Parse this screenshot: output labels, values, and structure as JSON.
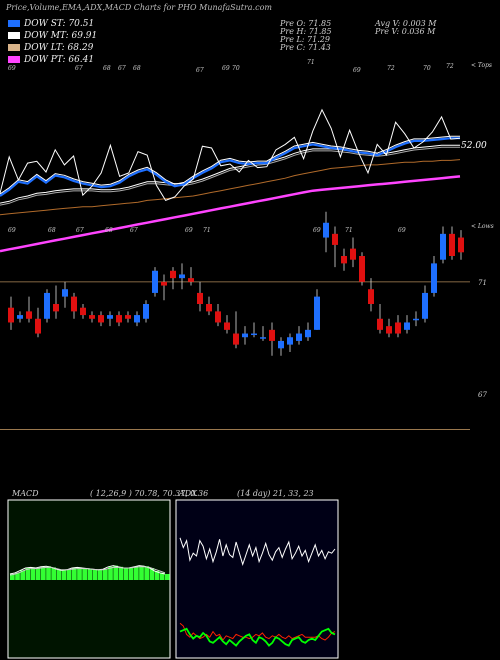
{
  "header": {
    "title": "Price,Volume,EMA,ADX,MACD Charts for PHO MunafaSutra.com",
    "open_label": "Pre O: 71.85",
    "high_label": "Pre H: 71.85",
    "low_label": "Pre L: 71.29",
    "close_label": "Pre C: 71.43",
    "avg_vol_label": "Avg V: 0.003 M",
    "pre_vol_label": "Pre V: 0.036 M"
  },
  "legend": [
    {
      "label": "DOW ST: 70.51",
      "color": "#1e6fff"
    },
    {
      "label": "DOW MT: 69.91",
      "color": "#ffffff"
    },
    {
      "label": "DOW LT: 68.29",
      "color": "#d9b48a"
    },
    {
      "label": "DOW PT: 66.41",
      "color": "#ff44ff"
    }
  ],
  "top_panel": {
    "right_label": "< Tops",
    "price_label": "52.00",
    "top_marks": [
      "69",
      "67",
      "68",
      "67",
      "68",
      "67",
      "69",
      "70",
      "71",
      "69",
      "72",
      "70",
      "72"
    ]
  },
  "candle_panel": {
    "right_label": "< Lows",
    "low_marks": [
      "69",
      "68",
      "67",
      "68",
      "67",
      "69",
      "71",
      "69",
      "71",
      "69"
    ],
    "level_labels": [
      "71",
      "67"
    ]
  },
  "macd": {
    "label": "MACD",
    "params": "( 12,26,9 ) 70.78, 70.37, 0.36"
  },
  "adx": {
    "label": "ADX",
    "params": "(14 day) 21, 33, 23"
  },
  "colors": {
    "up": "#1e6fff",
    "down": "#e01010",
    "macd_hist": "#33ff33",
    "adx_plus": "#00ff00",
    "adx_minus": "#ff2200"
  },
  "chart_data": [
    {
      "type": "candlestick",
      "title": "",
      "ylim": [
        66.5,
        73
      ],
      "series": [
        {
          "name": "candles",
          "ohlc": [
            [
              70.3,
              70.6,
              69.7,
              69.9
            ],
            [
              70.0,
              70.2,
              69.9,
              70.1
            ],
            [
              70.2,
              70.6,
              69.9,
              70.0
            ],
            [
              70.0,
              70.3,
              69.5,
              69.6
            ],
            [
              70.0,
              70.8,
              69.9,
              70.7
            ],
            [
              70.4,
              70.9,
              70.0,
              70.2
            ],
            [
              70.6,
              71.0,
              70.3,
              70.8
            ],
            [
              70.6,
              70.7,
              70.0,
              70.2
            ],
            [
              70.3,
              70.4,
              70.0,
              70.1
            ],
            [
              70.1,
              70.2,
              69.9,
              70.0
            ],
            [
              70.1,
              70.2,
              69.8,
              69.9
            ],
            [
              70.0,
              70.2,
              69.8,
              70.1
            ],
            [
              70.1,
              70.2,
              69.8,
              69.9
            ],
            [
              70.1,
              70.2,
              69.9,
              70.0
            ],
            [
              69.9,
              70.2,
              69.8,
              70.1
            ],
            [
              70.0,
              70.5,
              69.9,
              70.4
            ],
            [
              70.7,
              71.4,
              70.6,
              71.3
            ],
            [
              71.0,
              71.2,
              70.5,
              70.9
            ],
            [
              71.3,
              71.4,
              70.8,
              71.1
            ],
            [
              71.1,
              71.5,
              70.8,
              71.2
            ],
            [
              71.1,
              71.4,
              70.9,
              71.0
            ],
            [
              70.7,
              71.0,
              70.2,
              70.4
            ],
            [
              70.4,
              70.6,
              70.1,
              70.2
            ],
            [
              70.2,
              70.4,
              69.8,
              69.9
            ],
            [
              69.9,
              70.1,
              69.6,
              69.7
            ],
            [
              69.6,
              70.2,
              69.2,
              69.3
            ],
            [
              69.5,
              69.8,
              69.3,
              69.6
            ],
            [
              69.6,
              69.9,
              69.5,
              69.6
            ],
            [
              69.5,
              69.8,
              69.4,
              69.5
            ],
            [
              69.7,
              69.9,
              69.0,
              69.4
            ],
            [
              69.2,
              69.5,
              69.0,
              69.4
            ],
            [
              69.3,
              69.6,
              69.1,
              69.5
            ],
            [
              69.4,
              69.8,
              69.3,
              69.6
            ],
            [
              69.5,
              69.9,
              69.4,
              69.7
            ],
            [
              69.7,
              70.8,
              69.7,
              70.6
            ],
            [
              72.2,
              72.9,
              71.8,
              72.6
            ],
            [
              72.3,
              72.5,
              71.4,
              72.0
            ],
            [
              71.7,
              71.9,
              71.3,
              71.5
            ],
            [
              71.9,
              72.2,
              71.4,
              71.6
            ],
            [
              71.7,
              71.8,
              70.9,
              71.0
            ],
            [
              70.8,
              71.1,
              70.2,
              70.4
            ],
            [
              70.0,
              70.4,
              69.6,
              69.7
            ],
            [
              69.8,
              70.0,
              69.5,
              69.6
            ],
            [
              69.9,
              70.1,
              69.5,
              69.6
            ],
            [
              69.7,
              70.1,
              69.6,
              69.9
            ],
            [
              70.0,
              70.2,
              69.8,
              70.0
            ],
            [
              70.0,
              70.9,
              69.9,
              70.7
            ],
            [
              70.7,
              71.7,
              70.6,
              71.5
            ],
            [
              71.6,
              72.5,
              71.5,
              72.3
            ],
            [
              72.3,
              72.5,
              71.6,
              71.7
            ],
            [
              72.2,
              72.4,
              71.6,
              71.8
            ]
          ]
        }
      ]
    },
    {
      "type": "line",
      "title": "",
      "series": [
        {
          "name": "DOW ST",
          "values": [
            64.2,
            64.9,
            65.8,
            65.6,
            66.4,
            65.7,
            66.5,
            66.3,
            65.9,
            65.6,
            65.4,
            65.2,
            65.3,
            65.7,
            66.4,
            66.9,
            67.2,
            66.6,
            65.8,
            65.3,
            65.5,
            66.2,
            66.8,
            67.3,
            68.0,
            68.2,
            67.9,
            67.8,
            67.9,
            67.9,
            68.5,
            69.0,
            69.6,
            69.8,
            70.0,
            69.8,
            69.6,
            69.5,
            69.3,
            69.1,
            69.0,
            68.8,
            69.2,
            69.7,
            70.1,
            70.4,
            70.4,
            70.5,
            70.6,
            70.7,
            70.7
          ]
        },
        {
          "name": "DOW MT",
          "values": [
            63.4,
            63.6,
            64.0,
            64.2,
            64.5,
            64.6,
            64.8,
            64.9,
            65.0,
            65.0,
            65.0,
            64.9,
            64.9,
            65.0,
            65.2,
            65.5,
            65.8,
            65.8,
            65.7,
            65.6,
            65.6,
            65.8,
            66.1,
            66.5,
            66.9,
            67.3,
            67.5,
            67.7,
            67.9,
            68.0,
            68.3,
            68.6,
            69.0,
            69.3,
            69.5,
            69.5,
            69.5,
            69.4,
            69.3,
            69.1,
            69.0,
            68.9,
            69.0,
            69.2,
            69.4,
            69.6,
            69.7,
            69.8,
            69.9,
            69.9,
            69.9
          ]
        },
        {
          "name": "DOW LT",
          "values": [
            62.1,
            62.2,
            62.3,
            62.4,
            62.5,
            62.6,
            62.7,
            62.8,
            62.9,
            63.0,
            63.0,
            63.1,
            63.2,
            63.3,
            63.4,
            63.5,
            63.7,
            63.8,
            63.9,
            64.0,
            64.1,
            64.2,
            64.4,
            64.6,
            64.8,
            65.0,
            65.2,
            65.4,
            65.6,
            65.8,
            66.0,
            66.2,
            66.5,
            66.7,
            66.9,
            67.1,
            67.3,
            67.4,
            67.5,
            67.6,
            67.7,
            67.7,
            67.8,
            67.9,
            68.0,
            68.0,
            68.1,
            68.1,
            68.2,
            68.2,
            68.3
          ]
        },
        {
          "name": "DOW PT",
          "values": [
            58.0,
            58.2,
            58.4,
            58.6,
            58.8,
            59.0,
            59.2,
            59.4,
            59.6,
            59.8,
            60.0,
            60.2,
            60.4,
            60.6,
            60.8,
            61.0,
            61.2,
            61.4,
            61.6,
            61.8,
            62.0,
            62.2,
            62.4,
            62.6,
            62.8,
            63.0,
            63.2,
            63.4,
            63.6,
            63.8,
            64.0,
            64.2,
            64.4,
            64.6,
            64.8,
            64.9,
            65.0,
            65.1,
            65.2,
            65.3,
            65.4,
            65.5,
            65.6,
            65.7,
            65.8,
            65.9,
            66.0,
            66.1,
            66.2,
            66.3,
            66.4
          ]
        },
        {
          "name": "Close",
          "values": [
            64.5,
            68.6,
            66.0,
            67.9,
            68.1,
            66.9,
            69.4,
            67.7,
            68.7,
            64.3,
            65.3,
            66.8,
            69.9,
            66.4,
            66.8,
            69.2,
            68.8,
            65.4,
            63.7,
            64.1,
            65.3,
            66.1,
            69.8,
            69.6,
            67.6,
            67.8,
            66.9,
            68.2,
            67.4,
            67.5,
            69.4,
            70.0,
            70.8,
            68.4,
            71.5,
            73.9,
            71.8,
            68.6,
            71.6,
            69.0,
            66.8,
            70.0,
            68.8,
            72.5,
            71.2,
            69.6,
            70.3,
            71.4,
            73.1,
            70.6,
            70.7
          ]
        }
      ]
    },
    {
      "type": "area",
      "title": "",
      "series": [
        {
          "name": "MACD",
          "values": [
            0.1,
            0.12,
            0.16,
            0.2,
            0.21,
            0.2,
            0.22,
            0.23,
            0.21,
            0.18,
            0.16,
            0.17,
            0.2,
            0.21,
            0.2,
            0.19,
            0.18,
            0.17,
            0.18,
            0.22,
            0.24,
            0.22,
            0.2,
            0.2,
            0.22,
            0.24,
            0.23,
            0.2,
            0.15,
            0.12,
            0.1
          ]
        },
        {
          "name": "Signal",
          "values": [
            0.08,
            0.1,
            0.13,
            0.17,
            0.19,
            0.19,
            0.2,
            0.21,
            0.21,
            0.19,
            0.17,
            0.17,
            0.18,
            0.19,
            0.19,
            0.19,
            0.18,
            0.17,
            0.17,
            0.19,
            0.21,
            0.21,
            0.2,
            0.2,
            0.21,
            0.22,
            0.22,
            0.21,
            0.18,
            0.15,
            0.12
          ]
        }
      ]
    },
    {
      "type": "line",
      "title": "",
      "series": [
        {
          "name": "ADX",
          "values": [
            83,
            76,
            81,
            67,
            72,
            70,
            81,
            77,
            68,
            75,
            66,
            73,
            82,
            70,
            78,
            71,
            69,
            80,
            72,
            64,
            71,
            78,
            70,
            76,
            66,
            72,
            79,
            71,
            67,
            73,
            76,
            69,
            75,
            80,
            68,
            72,
            77,
            70,
            74,
            66,
            72,
            78,
            70,
            74,
            68,
            73,
            72,
            75
          ]
        },
        {
          "name": "+DI",
          "values": [
            16,
            17,
            18,
            14,
            11,
            13,
            12,
            15,
            13,
            9,
            8,
            10,
            12,
            9,
            7,
            10,
            8,
            6,
            9,
            11,
            13,
            14,
            10,
            8,
            12,
            11,
            9,
            6,
            8,
            12,
            11,
            9,
            7,
            6,
            10,
            11,
            12,
            9,
            8,
            10,
            11,
            10,
            13,
            16,
            17,
            18,
            15,
            14
          ]
        },
        {
          "name": "-DI",
          "values": [
            22,
            20,
            14,
            12,
            15,
            13,
            11,
            12,
            14,
            12,
            16,
            13,
            14,
            10,
            13,
            12,
            11,
            14,
            13,
            12,
            12,
            11,
            12,
            14,
            13,
            15,
            12,
            11,
            13,
            12,
            14,
            12,
            11,
            13,
            11,
            12,
            13,
            14,
            12,
            12,
            12,
            12,
            13,
            11,
            10,
            12,
            15,
            16
          ]
        }
      ]
    }
  ]
}
